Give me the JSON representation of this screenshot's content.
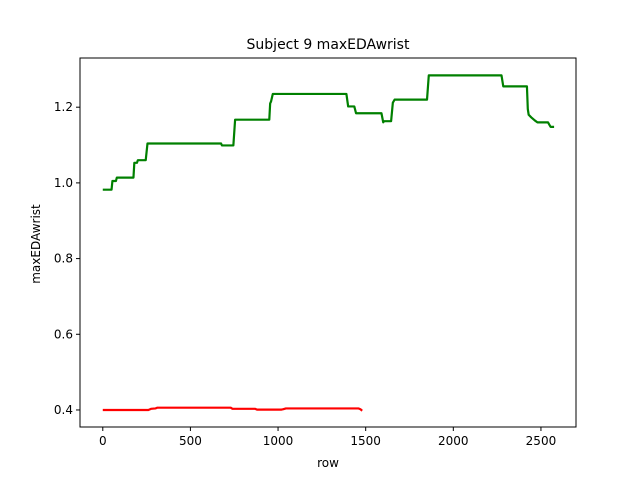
{
  "chart_data": {
    "type": "line",
    "title": "Subject 9 maxEDAwrist",
    "xlabel": "row",
    "ylabel": "maxEDAwrist",
    "xlim": [
      -130,
      2700
    ],
    "ylim": [
      0.355,
      1.33
    ],
    "xticks": [
      0,
      500,
      1000,
      1500,
      2000,
      2500
    ],
    "xtick_labels": [
      "0",
      "500",
      "1000",
      "1500",
      "2000",
      "2500"
    ],
    "yticks": [
      0.4,
      0.6,
      0.8,
      1.0,
      1.2
    ],
    "ytick_labels": [
      "0.4",
      "0.6",
      "0.8",
      "1.0",
      "1.2"
    ],
    "grid": false,
    "legend": "none",
    "series": [
      {
        "color": "#008000",
        "points": [
          [
            0,
            0.982
          ],
          [
            50,
            0.982
          ],
          [
            55,
            1.005
          ],
          [
            75,
            1.005
          ],
          [
            80,
            1.014
          ],
          [
            175,
            1.014
          ],
          [
            180,
            1.053
          ],
          [
            195,
            1.053
          ],
          [
            200,
            1.06
          ],
          [
            245,
            1.06
          ],
          [
            255,
            1.104
          ],
          [
            675,
            1.104
          ],
          [
            680,
            1.099
          ],
          [
            745,
            1.099
          ],
          [
            755,
            1.167
          ],
          [
            950,
            1.167
          ],
          [
            955,
            1.21
          ],
          [
            960,
            1.215
          ],
          [
            970,
            1.235
          ],
          [
            1390,
            1.235
          ],
          [
            1400,
            1.202
          ],
          [
            1435,
            1.202
          ],
          [
            1445,
            1.184
          ],
          [
            1590,
            1.184
          ],
          [
            1600,
            1.16
          ],
          [
            1605,
            1.163
          ],
          [
            1645,
            1.163
          ],
          [
            1655,
            1.212
          ],
          [
            1665,
            1.22
          ],
          [
            1850,
            1.22
          ],
          [
            1860,
            1.284
          ],
          [
            2275,
            1.284
          ],
          [
            2285,
            1.255
          ],
          [
            2420,
            1.255
          ],
          [
            2425,
            1.195
          ],
          [
            2430,
            1.18
          ],
          [
            2445,
            1.173
          ],
          [
            2465,
            1.165
          ],
          [
            2480,
            1.16
          ],
          [
            2540,
            1.16
          ],
          [
            2555,
            1.148
          ],
          [
            2575,
            1.148
          ]
        ]
      },
      {
        "color": "#ff0000",
        "points": [
          [
            0,
            0.4
          ],
          [
            260,
            0.4
          ],
          [
            275,
            0.403
          ],
          [
            300,
            0.404
          ],
          [
            310,
            0.406
          ],
          [
            730,
            0.406
          ],
          [
            740,
            0.403
          ],
          [
            870,
            0.403
          ],
          [
            880,
            0.401
          ],
          [
            1020,
            0.401
          ],
          [
            1030,
            0.402
          ],
          [
            1045,
            0.404
          ],
          [
            1460,
            0.404
          ],
          [
            1470,
            0.402
          ],
          [
            1480,
            0.398
          ]
        ]
      }
    ]
  }
}
